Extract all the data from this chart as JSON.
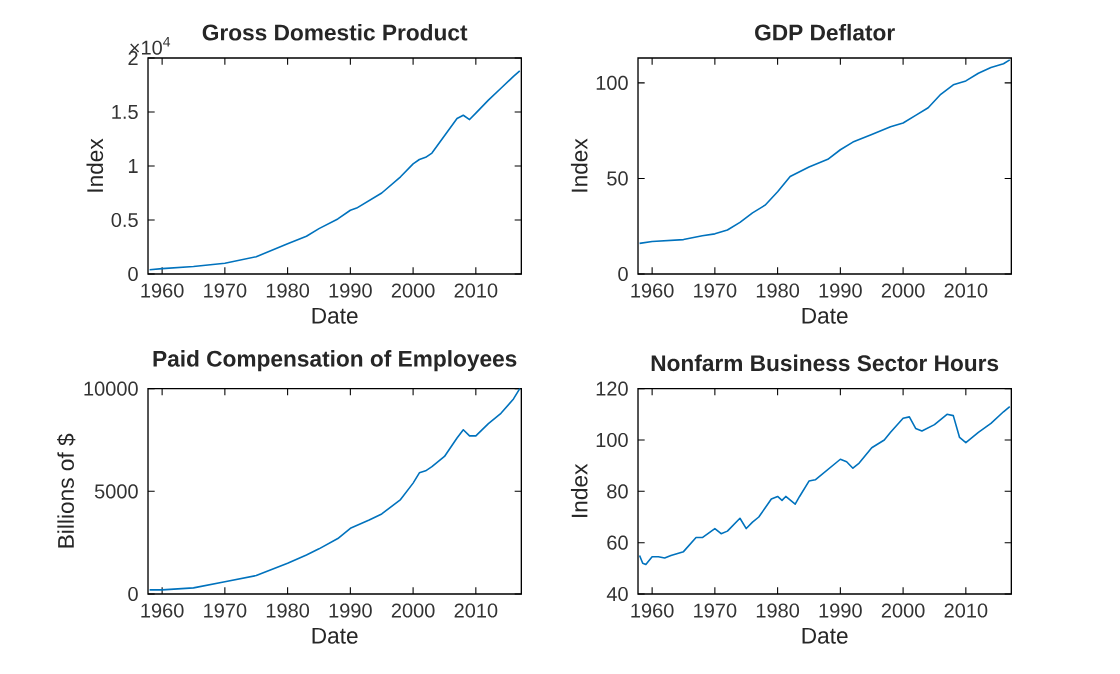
{
  "chart_data": [
    {
      "type": "line",
      "title": "Gross Domestic Product",
      "xlabel": "Date",
      "ylabel": "Index",
      "annotations": [
        "×10$^{4}$"
      ],
      "xlim": [
        1957.75,
        2017.25
      ],
      "xticks": [
        1960,
        1970,
        1980,
        1990,
        2000,
        2010
      ],
      "ylim": [
        0,
        2
      ],
      "yticks": [
        0,
        0.5,
        1,
        1.5,
        2
      ],
      "series": [
        {
          "color": "#0072bd",
          "x": [
            1958,
            1960,
            1965,
            1970,
            1975,
            1980,
            1983,
            1985,
            1988,
            1990,
            1991,
            1995,
            1998,
            2000,
            2001,
            2002,
            2003,
            2005,
            2007,
            2008,
            2009,
            2010,
            2012,
            2014,
            2016,
            2017
          ],
          "values": [
            0.04,
            0.05,
            0.07,
            0.1,
            0.16,
            0.28,
            0.35,
            0.42,
            0.51,
            0.59,
            0.61,
            0.75,
            0.9,
            1.02,
            1.06,
            1.08,
            1.12,
            1.28,
            1.44,
            1.47,
            1.43,
            1.49,
            1.61,
            1.72,
            1.83,
            1.88
          ]
        }
      ]
    },
    {
      "type": "line",
      "title": "GDP Deflator",
      "xlabel": "Date",
      "ylabel": "Index",
      "xlim": [
        1957.75,
        2017.25
      ],
      "xticks": [
        1960,
        1970,
        1980,
        1990,
        2000,
        2010
      ],
      "ylim": [
        0,
        113
      ],
      "yticks": [
        0,
        50,
        100
      ],
      "series": [
        {
          "color": "#0072bd",
          "x": [
            1958,
            1960,
            1965,
            1968,
            1970,
            1972,
            1974,
            1976,
            1978,
            1980,
            1982,
            1985,
            1988,
            1990,
            1992,
            1995,
            1998,
            2000,
            2002,
            2004,
            2006,
            2008,
            2009,
            2010,
            2012,
            2014,
            2016,
            2017
          ],
          "values": [
            16,
            17,
            18,
            20,
            21,
            23,
            27,
            32,
            36,
            43,
            51,
            56,
            60,
            65,
            69,
            73,
            77,
            79,
            83,
            87,
            94,
            99,
            100,
            101,
            105,
            108,
            110,
            112
          ]
        }
      ]
    },
    {
      "type": "line",
      "title": "Paid Compensation of Employees",
      "xlabel": "Date",
      "ylabel": "Billions of $",
      "xlim": [
        1957.75,
        2017.25
      ],
      "xticks": [
        1960,
        1970,
        1980,
        1990,
        2000,
        2010
      ],
      "ylim": [
        0,
        10000
      ],
      "yticks": [
        0,
        5000,
        10000
      ],
      "series": [
        {
          "color": "#0072bd",
          "x": [
            1958,
            1960,
            1965,
            1970,
            1975,
            1980,
            1983,
            1985,
            1988,
            1990,
            1993,
            1995,
            1998,
            2000,
            2001,
            2002,
            2003,
            2005,
            2007,
            2008,
            2009,
            2010,
            2012,
            2014,
            2016,
            2017
          ],
          "values": [
            200,
            200,
            300,
            600,
            900,
            1500,
            1900,
            2200,
            2700,
            3200,
            3600,
            3900,
            4600,
            5400,
            5900,
            6000,
            6200,
            6700,
            7600,
            8000,
            7700,
            7700,
            8300,
            8800,
            9500,
            10000
          ]
        }
      ]
    },
    {
      "type": "line",
      "title": "Nonfarm Business Sector Hours",
      "xlabel": "Date",
      "ylabel": "Index",
      "xlim": [
        1957.75,
        2017.25
      ],
      "xticks": [
        1960,
        1970,
        1980,
        1990,
        2000,
        2010
      ],
      "ylim": [
        40,
        120
      ],
      "yticks": [
        40,
        60,
        80,
        100,
        120
      ],
      "series": [
        {
          "color": "#0072bd",
          "x": [
            1958,
            1958.5,
            1959,
            1960,
            1961,
            1962,
            1963,
            1965,
            1967,
            1968,
            1970,
            1971,
            1972,
            1974,
            1975,
            1976,
            1977,
            1979,
            1980,
            1980.7,
            1981.3,
            1982.8,
            1983.5,
            1985,
            1986,
            1988,
            1990,
            1991,
            1992,
            1993,
            1995,
            1997,
            1998,
            2000,
            2001,
            2002,
            2003,
            2005,
            2007,
            2008,
            2009,
            2010,
            2012,
            2014,
            2016,
            2017
          ],
          "values": [
            55,
            52,
            51.5,
            54.5,
            54.5,
            54,
            55,
            56.5,
            62,
            62,
            65.5,
            63.5,
            64.5,
            69.5,
            65.5,
            68,
            70,
            77,
            78,
            76.5,
            78,
            75,
            78,
            84,
            84.5,
            88.5,
            92.5,
            91.5,
            89,
            91,
            97,
            100,
            103,
            108.5,
            109,
            104.5,
            103.5,
            106,
            110,
            109.5,
            101,
            99,
            103,
            106.5,
            111,
            113
          ]
        }
      ]
    }
  ]
}
